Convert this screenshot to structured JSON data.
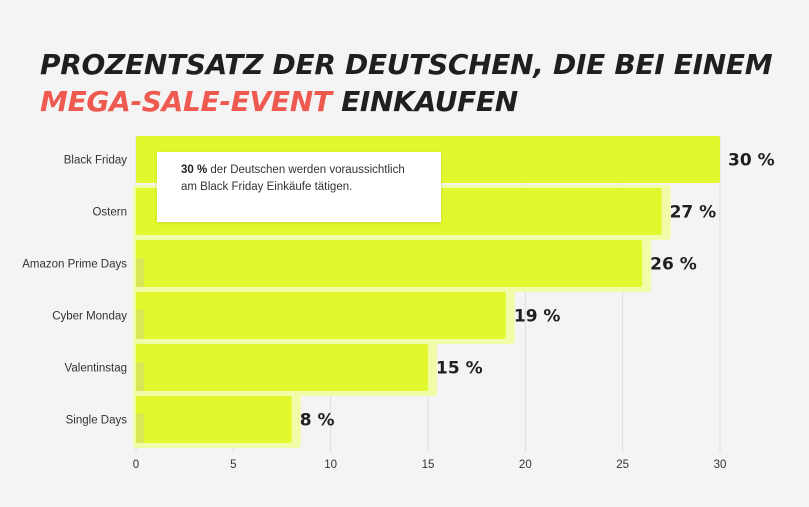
{
  "title": {
    "line1": "PROZENTSATZ DER DEUTSCHEN, DIE BEI EINEM",
    "line2_accent": "MEGA-SALE-EVENT",
    "line2_rest": " EINKAUFEN"
  },
  "tooltip": {
    "value": "30 %",
    "text": " der Deutschen werden voraussichtlich am Black Friday Einkäufe tätigen."
  },
  "colors": {
    "bar": "#e2f82e",
    "bar_shadow": "#f2fba8",
    "accent": "#ee5a4f",
    "title": "#1f1f1f",
    "grid": "#dedede"
  },
  "chart_data": {
    "type": "bar",
    "orientation": "horizontal",
    "categories": [
      "Black Friday",
      "Ostern",
      "Amazon Prime Days",
      "Cyber Monday",
      "Valentinstag",
      "Single Days"
    ],
    "values": [
      30,
      27,
      26,
      19,
      15,
      8
    ],
    "value_labels": [
      "30 %",
      "27 %",
      "26 %",
      "19 %",
      "15 %",
      "8 %"
    ],
    "xlim": [
      0,
      30
    ],
    "xticks": [
      0,
      5,
      10,
      15,
      20,
      25,
      30
    ],
    "grid": true
  }
}
